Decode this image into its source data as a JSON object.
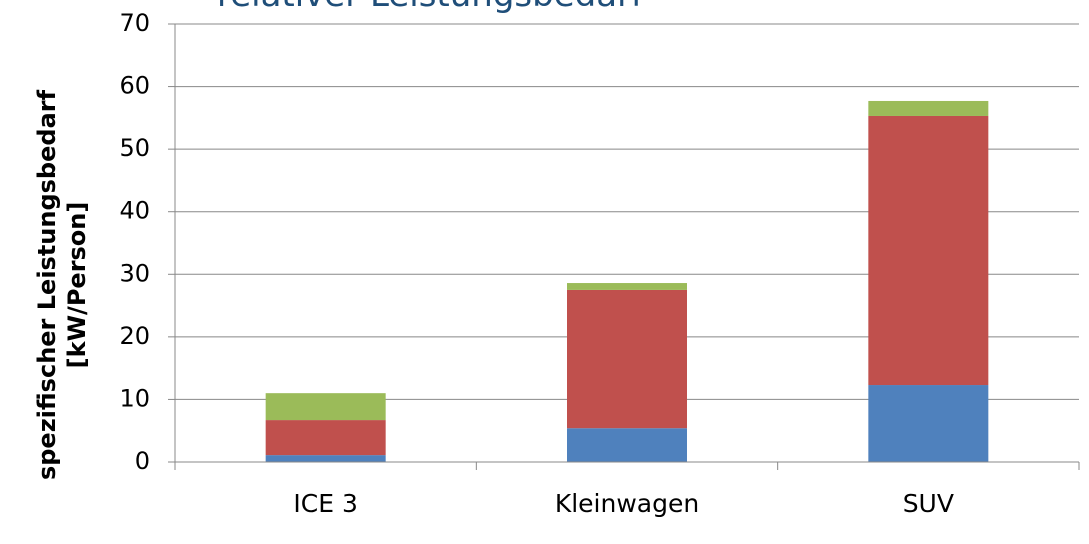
{
  "chart_data": {
    "type": "stacked_bar",
    "title": "relativer Leistungsbedarf",
    "y_label": [
      "spezifischer Leistungsbedarf",
      "[kW/Person]"
    ],
    "categories": [
      "ICE 3",
      "Kleinwagen",
      "SUV"
    ],
    "series": [
      {
        "color": "#4f81bd",
        "values": [
          1.1,
          5.4,
          12.3
        ]
      },
      {
        "color": "#c0504d",
        "values": [
          5.6,
          22.1,
          43.0
        ]
      },
      {
        "color": "#9bbb59",
        "values": [
          4.3,
          1.1,
          2.4
        ]
      }
    ],
    "ylim": [
      0,
      70
    ],
    "yticks": [
      0,
      10,
      20,
      30,
      40,
      50,
      60,
      70
    ],
    "grid": true
  }
}
